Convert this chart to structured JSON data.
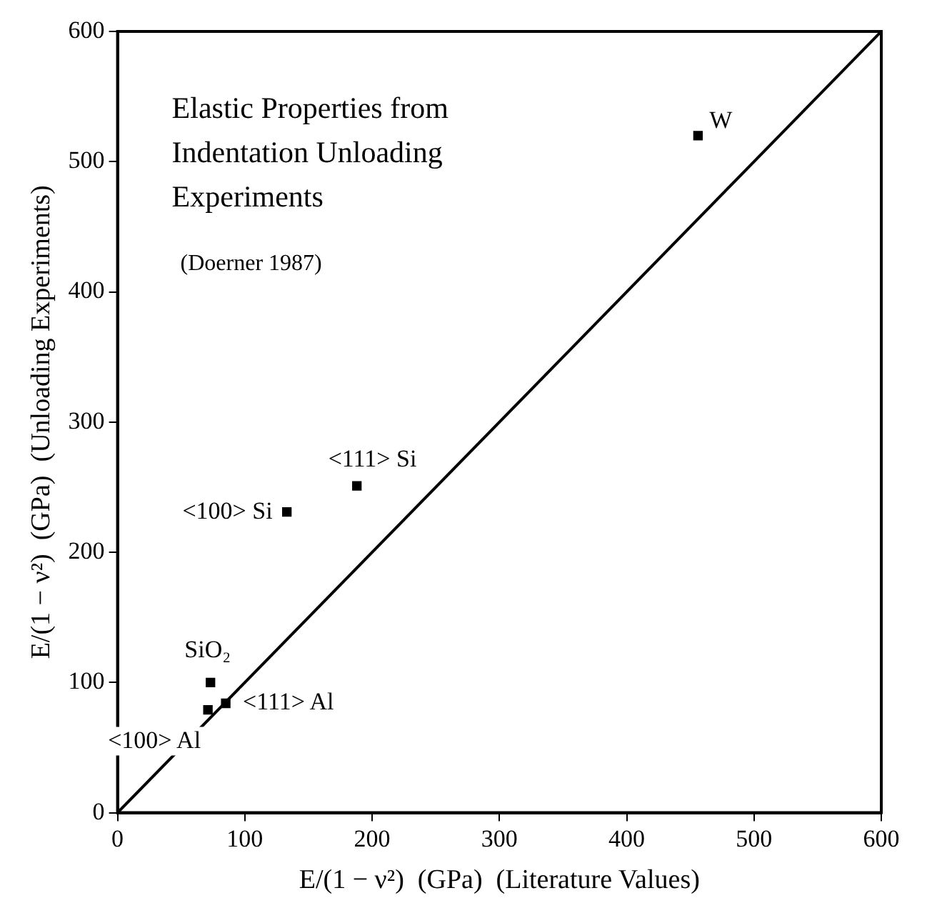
{
  "chart_data": {
    "type": "scatter",
    "title": "Elastic Properties from Indentation Unloading Experiments",
    "xlabel": "E/(1 − ν²)  (GPa)  (Literature Values)",
    "ylabel": "E/(1 − ν²)  (GPa)  (Unloading Experiments)",
    "series": [
      {
        "color": "#000000",
        "marker": "square",
        "x": [
          456,
          188,
          133,
          73,
          71,
          85
        ],
        "values": [
          520,
          251,
          231,
          100,
          79,
          84
        ]
      },
      {
        "type": "line",
        "color": "#000000",
        "line_style": "solid",
        "marker": "none",
        "x": [
          0,
          600
        ],
        "values": [
          0,
          600
        ]
      }
    ],
    "annotations": [
      "(Doerner 1987)",
      {
        "text": "W",
        "x": 456,
        "y": 520
      },
      {
        "text": "<111> Si",
        "x": 188,
        "y": 251
      },
      {
        "text": "<100> Si",
        "x": 133,
        "y": 231
      },
      {
        "text": "SiO₂",
        "x": 73,
        "y": 100
      },
      {
        "text": "<100> Al",
        "x": 71,
        "y": 79
      },
      {
        "text": "<111> Al",
        "x": 85,
        "y": 84
      }
    ],
    "xlim": [
      0,
      600
    ],
    "ylim": [
      0,
      600
    ],
    "xticks": [
      0,
      100,
      200,
      300,
      400,
      500,
      600
    ],
    "yticks": [
      0,
      100,
      200,
      300,
      400,
      500,
      600
    ],
    "grid": false,
    "legend": false
  }
}
